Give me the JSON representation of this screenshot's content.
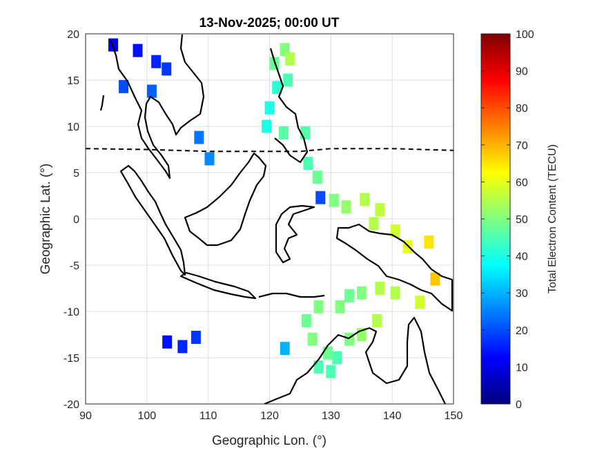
{
  "chart_data": {
    "type": "heatmap",
    "title": "13-Nov-2025; 00:00 UT",
    "xlabel": "Geographic Lon. (°)",
    "ylabel": "Geographic Lat. (°)",
    "xlim": [
      90,
      150
    ],
    "ylim": [
      -20,
      20
    ],
    "x_ticks": [
      90,
      100,
      110,
      120,
      130,
      140,
      150
    ],
    "y_ticks": [
      20,
      15,
      10,
      5,
      0,
      -5,
      -10,
      -15,
      -20
    ],
    "grid": true,
    "colorbar": {
      "label": "Total Electron Content (TECU)",
      "range": [
        0,
        100
      ],
      "ticks": [
        0,
        10,
        20,
        30,
        40,
        50,
        60,
        70,
        80,
        90,
        100
      ],
      "colormap": "jet"
    },
    "magnetic_equator_lat": [
      [
        90,
        7.6
      ],
      [
        100,
        7.5
      ],
      [
        110,
        7.3
      ],
      [
        120,
        7.3
      ],
      [
        125,
        7.3
      ],
      [
        130,
        7.6
      ],
      [
        140,
        7.6
      ],
      [
        150,
        7.4
      ]
    ],
    "tec_cells": [
      [
        94.5,
        18.8,
        12
      ],
      [
        98.5,
        18.2,
        14
      ],
      [
        101.5,
        17.0,
        16
      ],
      [
        103.2,
        16.2,
        18
      ],
      [
        96.2,
        14.3,
        20
      ],
      [
        100.8,
        13.8,
        22
      ],
      [
        108.5,
        8.8,
        24
      ],
      [
        110.2,
        6.5,
        26
      ],
      [
        122.5,
        18.3,
        50
      ],
      [
        123.3,
        17.3,
        55
      ],
      [
        120.8,
        16.8,
        48
      ],
      [
        123.0,
        15.0,
        45
      ],
      [
        121.2,
        14.2,
        42
      ],
      [
        120.0,
        12.0,
        40
      ],
      [
        119.5,
        10.0,
        40
      ],
      [
        122.3,
        9.3,
        46
      ],
      [
        125.8,
        9.3,
        46
      ],
      [
        126.3,
        6.0,
        45
      ],
      [
        127.8,
        4.5,
        48
      ],
      [
        128.3,
        2.3,
        20
      ],
      [
        130.5,
        2.0,
        50
      ],
      [
        132.5,
        1.3,
        52
      ],
      [
        135.5,
        2.1,
        55
      ],
      [
        138.0,
        1.0,
        56
      ],
      [
        137.0,
        -0.5,
        55
      ],
      [
        140.5,
        -1.3,
        58
      ],
      [
        142.5,
        -3.0,
        60
      ],
      [
        146.0,
        -2.5,
        65
      ],
      [
        147.0,
        -6.5,
        68
      ],
      [
        144.5,
        -9.0,
        58
      ],
      [
        140.5,
        -8.0,
        55
      ],
      [
        138.0,
        -7.5,
        55
      ],
      [
        135.0,
        -8.0,
        50
      ],
      [
        133.0,
        -8.3,
        48
      ],
      [
        131.5,
        -9.5,
        50
      ],
      [
        128.0,
        -9.5,
        50
      ],
      [
        126.0,
        -11.0,
        48
      ],
      [
        127.0,
        -13.0,
        50
      ],
      [
        129.5,
        -14.5,
        48
      ],
      [
        131.0,
        -15.0,
        45
      ],
      [
        128.0,
        -16.0,
        45
      ],
      [
        130.0,
        -16.5,
        45
      ],
      [
        133.0,
        -13.0,
        50
      ],
      [
        135.0,
        -12.5,
        52
      ],
      [
        137.5,
        -11.0,
        55
      ],
      [
        122.5,
        -14.0,
        30
      ],
      [
        103.3,
        -13.3,
        14
      ],
      [
        105.8,
        -13.8,
        16
      ],
      [
        108.0,
        -12.8,
        18
      ]
    ]
  }
}
